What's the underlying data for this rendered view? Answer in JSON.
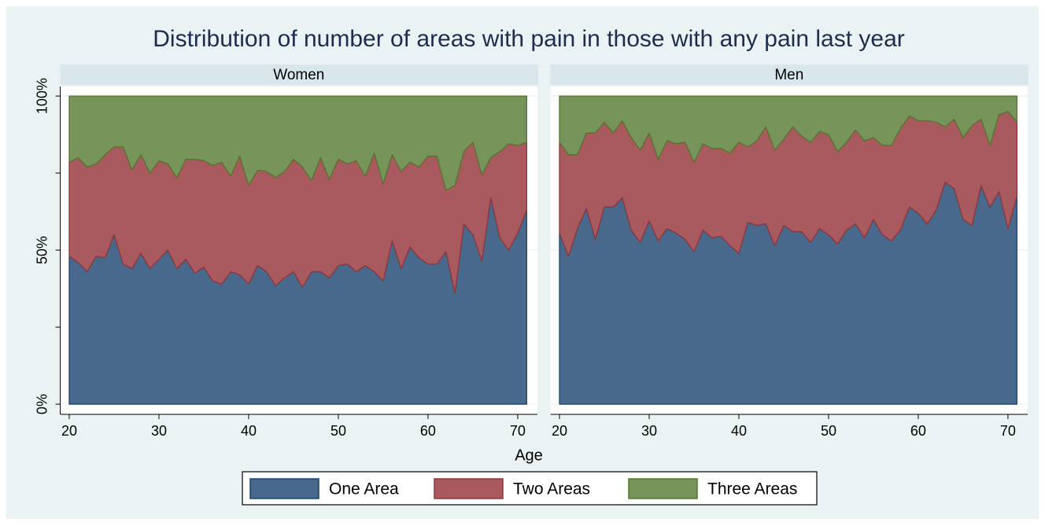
{
  "chart_data": {
    "type": "area",
    "stacked": true,
    "title": "Distribution of number of areas with pain in those with any pain last year",
    "xlabel": "Age",
    "panels": [
      "Women",
      "Men"
    ],
    "x": [
      20,
      21,
      22,
      23,
      24,
      25,
      26,
      27,
      28,
      29,
      30,
      31,
      32,
      33,
      34,
      35,
      36,
      37,
      38,
      39,
      40,
      41,
      42,
      43,
      44,
      45,
      46,
      47,
      48,
      49,
      50,
      51,
      52,
      53,
      54,
      55,
      56,
      57,
      58,
      59,
      60,
      61,
      62,
      63,
      64,
      65,
      66,
      67,
      68,
      69,
      70,
      71
    ],
    "xlim": [
      19,
      72.2
    ],
    "xticks": [
      20,
      30,
      40,
      50,
      60,
      70
    ],
    "ylim": [
      -3.3,
      103.1
    ],
    "yticks": [
      {
        "value": 0,
        "label": "0%"
      },
      {
        "value": 50,
        "label": "50%"
      },
      {
        "value": 100,
        "label": "100%"
      }
    ],
    "minor_yticks": [
      25,
      75
    ],
    "grid": true,
    "legend": "bottom",
    "series": [
      {
        "name": "One Area",
        "color": "#48698b",
        "edge": "#1a476f",
        "values": [
          [
            48,
            46,
            43,
            48,
            47.5,
            55,
            45.5,
            44,
            49,
            44,
            47,
            50,
            44,
            47,
            42.5,
            44.5,
            40,
            39,
            43,
            42,
            39,
            45,
            43,
            38.5,
            41,
            43,
            38,
            43,
            43,
            41,
            45,
            45.5,
            43,
            45,
            43,
            40,
            53,
            44,
            51,
            47.5,
            45.5,
            45.5,
            49.5,
            36,
            58.5,
            55,
            46.5,
            67,
            54,
            50,
            55.5,
            63
          ],
          [
            55.5,
            48,
            57,
            63.5,
            53.5,
            64,
            64,
            67,
            56.5,
            52.5,
            59.5,
            53,
            57,
            55.5,
            53.5,
            49.5,
            56.5,
            54,
            54.5,
            51.5,
            49,
            59,
            58,
            58.5,
            51.5,
            58,
            56,
            56,
            52.5,
            57,
            55,
            52,
            56.5,
            58.5,
            54,
            60,
            55,
            53,
            56.5,
            64,
            62,
            58.5,
            63,
            72,
            70,
            60,
            58,
            71,
            64,
            69,
            57,
            67.5
          ]
        ]
      },
      {
        "name": "Two Areas",
        "color": "#a95a5e",
        "edge": "#90353b",
        "values": [
          [
            30.5,
            34,
            34,
            30,
            33.5,
            28.5,
            38,
            32,
            32,
            31,
            32,
            28,
            29.5,
            32.5,
            37,
            34.5,
            37.5,
            39.5,
            31,
            38.5,
            32,
            31,
            32.5,
            35,
            34.5,
            36.5,
            39,
            29.5,
            37,
            32,
            34.5,
            32.5,
            36,
            29,
            38.5,
            31.5,
            28,
            31.5,
            27.5,
            29.5,
            35,
            35,
            20,
            35,
            23.5,
            30,
            28,
            13,
            28,
            34.5,
            28.5,
            22
          ],
          [
            29.5,
            33,
            24,
            24.5,
            34.5,
            27.5,
            24,
            25,
            30,
            30,
            28.5,
            26.5,
            28.5,
            29,
            31.5,
            29,
            28,
            29,
            28.5,
            30,
            36,
            24.5,
            27.5,
            31.5,
            31,
            28,
            34,
            31,
            32.5,
            31.5,
            32.5,
            30,
            28.5,
            30.5,
            31.5,
            26.5,
            29,
            31,
            33,
            29.5,
            30,
            33.5,
            28.5,
            18,
            22.5,
            26.5,
            32.5,
            21.5,
            20,
            25,
            38,
            24
          ]
        ]
      },
      {
        "name": "Three Areas",
        "color": "#77955a",
        "edge": "#55752f",
        "values": [
          [
            21.5,
            20,
            23,
            22,
            19,
            16.5,
            16.5,
            24,
            19,
            25,
            21,
            22,
            26.5,
            20.5,
            20.5,
            21,
            22.5,
            21.5,
            26,
            19.5,
            29,
            24,
            24.5,
            26.5,
            24.5,
            20.5,
            23,
            27.5,
            20,
            27,
            20.5,
            22,
            21,
            26,
            18.5,
            28.5,
            19,
            24.5,
            21.5,
            23,
            19.5,
            19.5,
            30.5,
            29,
            18,
            15,
            25.5,
            20,
            18,
            15.5,
            16,
            15
          ],
          [
            15,
            19,
            19,
            12,
            12,
            8.5,
            12,
            8,
            13.5,
            17.5,
            12,
            20.5,
            14.5,
            15.5,
            15,
            21.5,
            15.5,
            17,
            17,
            18.5,
            15,
            16.5,
            14.5,
            10,
            17.5,
            14,
            10,
            13,
            15,
            11.5,
            12.5,
            18,
            15,
            11,
            14.5,
            13.5,
            16,
            16,
            10.5,
            6.5,
            8,
            8,
            8.5,
            10,
            7.5,
            13.5,
            9.5,
            7.5,
            16,
            6,
            5,
            8.5
          ]
        ]
      }
    ]
  }
}
